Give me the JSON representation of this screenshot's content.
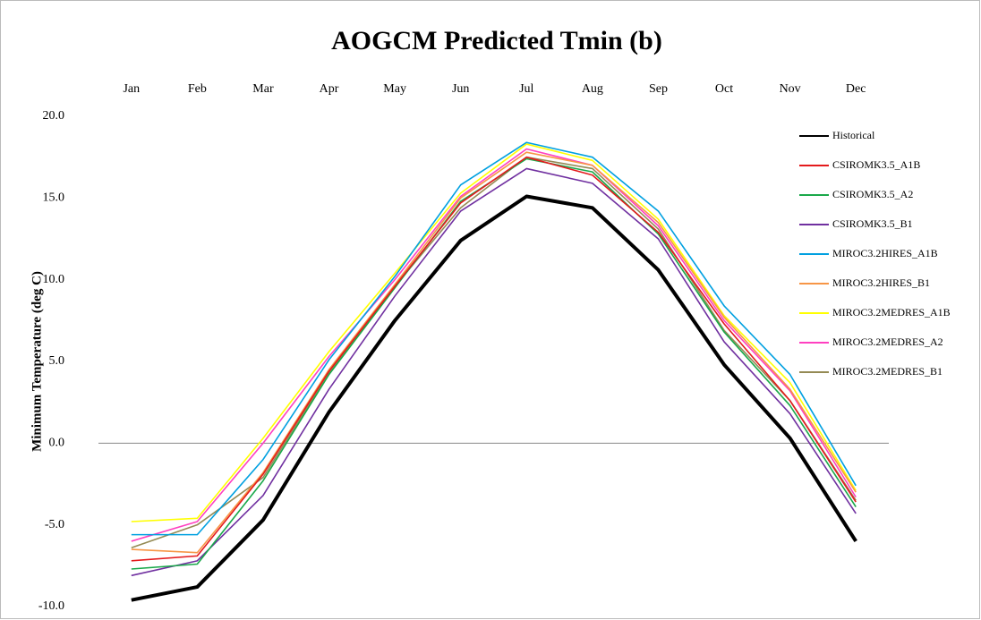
{
  "chart_data": {
    "type": "line",
    "title": "AOGCM Predicted Tmin (b)",
    "y_label": "Minimum Temperature (deg C)",
    "categories": [
      "Jan",
      "Feb",
      "Mar",
      "Apr",
      "May",
      "Jun",
      "Jul",
      "Aug",
      "Sep",
      "Oct",
      "Nov",
      "Dec"
    ],
    "ylim": [
      -10,
      20
    ],
    "yticks": [
      {
        "value": -10,
        "label": "-10.0"
      },
      {
        "value": -5,
        "label": "-5.0"
      },
      {
        "value": 0,
        "label": "0.0"
      },
      {
        "value": 5,
        "label": "5.0"
      },
      {
        "value": 10,
        "label": "10.0"
      },
      {
        "value": 15,
        "label": "15.0"
      },
      {
        "value": 20,
        "label": "20.0"
      }
    ],
    "grid": false,
    "legend": "right",
    "series": [
      {
        "name": "Historical",
        "color": "#000000",
        "values": [
          -9.6,
          -8.8,
          -4.7,
          1.9,
          7.5,
          12.4,
          15.1,
          14.4,
          10.6,
          4.8,
          0.3,
          -6.0
        ]
      },
      {
        "name": "CSIROMK3.5_A1B",
        "color": "#e41a1c",
        "values": [
          -7.2,
          -6.9,
          -1.9,
          4.4,
          9.6,
          14.7,
          17.5,
          16.4,
          12.9,
          7.3,
          2.6,
          -3.6
        ]
      },
      {
        "name": "CSIROMK3.5_A2",
        "color": "#1aa84a",
        "values": [
          -7.7,
          -7.4,
          -2.3,
          4.2,
          9.5,
          14.8,
          17.4,
          16.6,
          12.8,
          6.8,
          2.3,
          -3.9
        ]
      },
      {
        "name": "CSIROMK3.5_B1",
        "color": "#7030a0",
        "values": [
          -8.1,
          -7.2,
          -3.2,
          3.3,
          9.0,
          14.2,
          16.8,
          15.9,
          12.5,
          6.2,
          1.8,
          -4.3
        ]
      },
      {
        "name": "MIROC3.2HIRES_A1B",
        "color": "#00a0e0",
        "values": [
          -5.6,
          -5.6,
          -1.0,
          5.1,
          10.2,
          15.8,
          18.4,
          17.5,
          14.2,
          8.4,
          4.2,
          -2.6
        ]
      },
      {
        "name": "MIROC3.2HIRES_B1",
        "color": "#f79646",
        "values": [
          -6.5,
          -6.7,
          -1.8,
          4.5,
          9.7,
          15.0,
          17.8,
          17.0,
          13.5,
          7.7,
          3.3,
          -3.0
        ]
      },
      {
        "name": "MIROC3.2MEDRES_A1B",
        "color": "#ffff00",
        "values": [
          -4.8,
          -4.6,
          0.3,
          5.6,
          10.4,
          15.3,
          18.3,
          17.3,
          13.7,
          7.8,
          3.7,
          -2.9
        ]
      },
      {
        "name": "MIROC3.2MEDRES_A2",
        "color": "#ff40c0",
        "values": [
          -6.0,
          -4.8,
          0.0,
          5.3,
          10.0,
          15.1,
          18.0,
          17.0,
          13.3,
          7.5,
          3.2,
          -3.3
        ]
      },
      {
        "name": "MIROC3.2MEDRES_B1",
        "color": "#948a54",
        "values": [
          -6.4,
          -5.0,
          -2.1,
          4.3,
          9.6,
          14.4,
          17.5,
          16.8,
          13.1,
          6.9,
          2.6,
          -3.5
        ]
      }
    ]
  }
}
